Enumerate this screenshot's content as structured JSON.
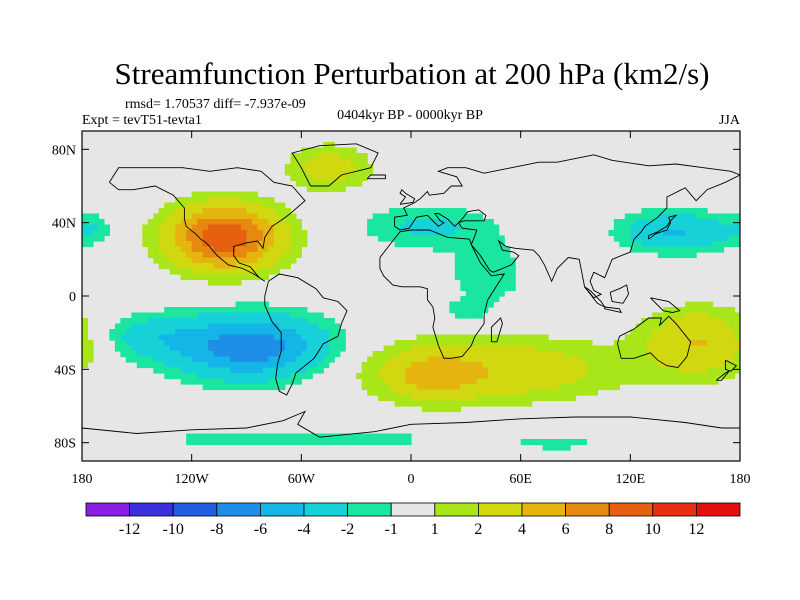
{
  "chart_data": {
    "type": "heatmap",
    "title": "Streamfunction Perturbation at 200 hPa (km2/s)",
    "stats_line": "rmsd= 1.70537  diff= -7.937e-09",
    "experiment": "Expt = tevT51-tevta1",
    "period": "0404kyr BP - 0000kyr BP",
    "season": "JJA",
    "xlim": [
      -180,
      180
    ],
    "ylim": [
      -90,
      90
    ],
    "x_ticks": [
      {
        "value": -180,
        "label": "180"
      },
      {
        "value": -120,
        "label": "120W"
      },
      {
        "value": -60,
        "label": "60W"
      },
      {
        "value": 0,
        "label": "0"
      },
      {
        "value": 60,
        "label": "60E"
      },
      {
        "value": 120,
        "label": "120E"
      },
      {
        "value": 180,
        "label": "180"
      }
    ],
    "y_ticks": [
      {
        "value": 80,
        "label": "80N"
      },
      {
        "value": 40,
        "label": "40N"
      },
      {
        "value": 0,
        "label": "0"
      },
      {
        "value": -40,
        "label": "40S"
      },
      {
        "value": -80,
        "label": "80S"
      }
    ],
    "colorbar": {
      "labels": [
        "-12",
        "-10",
        "-8",
        "-6",
        "-4",
        "-2",
        "-1",
        "1",
        "2",
        "4",
        "6",
        "8",
        "10",
        "12"
      ],
      "colors": [
        "#8a1de6",
        "#3c2fe0",
        "#1f5fe0",
        "#1e8fe6",
        "#13b6e6",
        "#16d2d8",
        "#1ae6a0",
        "#e6e6e6",
        "#a8e61a",
        "#d2d80f",
        "#e6b40f",
        "#e68a0f",
        "#e6600f",
        "#e6300f",
        "#e60f0f"
      ]
    },
    "anomalies": [
      {
        "name": "N-America-high",
        "lon": -102,
        "lat": 32,
        "amp": 9.5,
        "rlon": 30,
        "rlat": 17
      },
      {
        "name": "N-Atlantic-high",
        "lon": -45,
        "lat": 70,
        "amp": 3,
        "rlon": 22,
        "rlat": 12
      },
      {
        "name": "SE-Pacific-low",
        "lon": -88,
        "lat": -28,
        "amp": -7.5,
        "rlon": 42,
        "rlat": 17
      },
      {
        "name": "S-Pacific-low-west",
        "lon": -145,
        "lat": -22,
        "amp": -2.5,
        "rlon": 28,
        "rlat": 12
      },
      {
        "name": "Eurasia-low",
        "lon": 8,
        "lat": 38,
        "amp": -2.3,
        "rlon": 36,
        "rlat": 12
      },
      {
        "name": "Arabia-low",
        "lon": 42,
        "lat": 12,
        "amp": -1.6,
        "rlon": 24,
        "rlat": 20
      },
      {
        "name": "W-Pacific-low",
        "lon": 145,
        "lat": 35,
        "amp": -4.2,
        "rlon": 30,
        "rlat": 11
      },
      {
        "name": "S-Atlantic-Indian-high",
        "lon": 40,
        "lat": -40,
        "amp": 3.8,
        "rlon": 70,
        "rlat": 17
      },
      {
        "name": "S-Atlantic-core-high",
        "lon": 12,
        "lat": -45,
        "amp": 2.8,
        "rlon": 20,
        "rlat": 12
      },
      {
        "name": "Australia-high",
        "lon": 158,
        "lat": -25,
        "amp": 4,
        "rlon": 30,
        "rlat": 18
      },
      {
        "name": "Antarctic-low",
        "lon": -60,
        "lat": -78,
        "amp": -1.7,
        "rlon": 90,
        "rlat": 6
      },
      {
        "name": "E-Pacific-dateline-low",
        "lon": -175,
        "lat": 37,
        "amp": -1.6,
        "rlon": 12,
        "rlat": 9
      },
      {
        "name": "S-Africa-low",
        "lon": 30,
        "lat": -8,
        "amp": -1.4,
        "rlon": 12,
        "rlat": 6
      },
      {
        "name": "Antarctic-E-low",
        "lon": 80,
        "lat": -80,
        "amp": -1.5,
        "rlon": 25,
        "rlat": 4
      }
    ]
  }
}
